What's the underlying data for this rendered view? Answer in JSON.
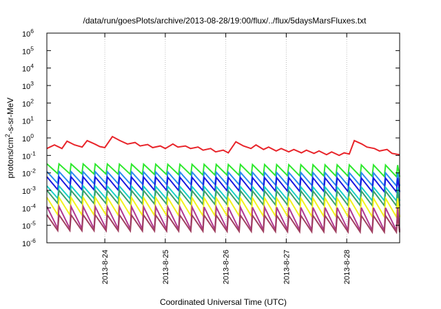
{
  "chart_data": {
    "type": "line",
    "title": "/data/run/goesPlots/archive/2013-08-28/19:00/flux/../flux/5daysMarsFluxes.txt",
    "xlabel": "Coordinated Universal Time (UTC)",
    "ylabel_parts": [
      "protons/cm",
      "2",
      "-s-sr-MeV"
    ],
    "y_scale": "log",
    "ylim": [
      1e-06,
      1000000.0
    ],
    "y_ticks": [
      {
        "base": "10",
        "exp": "-6"
      },
      {
        "base": "10",
        "exp": "-5"
      },
      {
        "base": "10",
        "exp": "-4"
      },
      {
        "base": "10",
        "exp": "-3"
      },
      {
        "base": "10",
        "exp": "-2"
      },
      {
        "base": "10",
        "exp": "-1"
      },
      {
        "base": "10",
        "exp": "0"
      },
      {
        "base": "10",
        "exp": "1"
      },
      {
        "base": "10",
        "exp": "2"
      },
      {
        "base": "10",
        "exp": "3"
      },
      {
        "base": "10",
        "exp": "4"
      },
      {
        "base": "10",
        "exp": "5"
      },
      {
        "base": "10",
        "exp": "6"
      }
    ],
    "xlim": [
      "2013-08-23T01:00",
      "2013-08-28T21:00"
    ],
    "x_ticks": [
      "2013-8-24",
      "2013-8-25",
      "2013-8-26",
      "2013-8-27",
      "2013-8-28"
    ],
    "x_tick_dates": [
      "2013-08-24",
      "2013-08-25",
      "2013-08-26",
      "2013-08-27",
      "2013-08-28"
    ],
    "grid": "vertical",
    "legend": "none",
    "series": [
      {
        "color": "#e8242a",
        "points": [
          [
            "2013-08-23T01:00",
            0.25
          ],
          [
            "2013-08-23T04:00",
            0.4
          ],
          [
            "2013-08-23T07:00",
            0.25
          ],
          [
            "2013-08-23T09:00",
            0.65
          ],
          [
            "2013-08-23T12:00",
            0.4
          ],
          [
            "2013-08-23T15:00",
            0.3
          ],
          [
            "2013-08-23T17:00",
            0.7
          ],
          [
            "2013-08-23T20:00",
            0.45
          ],
          [
            "2013-08-23T22:00",
            0.32
          ],
          [
            "2013-08-24T00:00",
            0.28
          ],
          [
            "2013-08-24T03:00",
            1.2
          ],
          [
            "2013-08-24T06:00",
            0.7
          ],
          [
            "2013-08-24T09:00",
            0.45
          ],
          [
            "2013-08-24T12:00",
            0.55
          ],
          [
            "2013-08-24T14:00",
            0.35
          ],
          [
            "2013-08-24T17:00",
            0.42
          ],
          [
            "2013-08-24T19:00",
            0.28
          ],
          [
            "2013-08-24T22:00",
            0.35
          ],
          [
            "2013-08-25T00:00",
            0.25
          ],
          [
            "2013-08-25T03:00",
            0.45
          ],
          [
            "2013-08-25T05:00",
            0.3
          ],
          [
            "2013-08-25T08:00",
            0.35
          ],
          [
            "2013-08-25T10:00",
            0.25
          ],
          [
            "2013-08-25T13:00",
            0.3
          ],
          [
            "2013-08-25T15:00",
            0.2
          ],
          [
            "2013-08-25T18:00",
            0.25
          ],
          [
            "2013-08-25T20:00",
            0.16
          ],
          [
            "2013-08-25T23:00",
            0.2
          ],
          [
            "2013-08-26T01:00",
            0.14
          ],
          [
            "2013-08-26T04:00",
            0.6
          ],
          [
            "2013-08-26T07:00",
            0.35
          ],
          [
            "2013-08-26T10:00",
            0.25
          ],
          [
            "2013-08-26T12:00",
            0.4
          ],
          [
            "2013-08-26T15:00",
            0.22
          ],
          [
            "2013-08-26T17:00",
            0.3
          ],
          [
            "2013-08-26T20:00",
            0.18
          ],
          [
            "2013-08-26T22:00",
            0.25
          ],
          [
            "2013-08-27T01:00",
            0.16
          ],
          [
            "2013-08-27T03:00",
            0.22
          ],
          [
            "2013-08-27T06:00",
            0.14
          ],
          [
            "2013-08-27T08:00",
            0.2
          ],
          [
            "2013-08-27T11:00",
            0.13
          ],
          [
            "2013-08-27T13:00",
            0.18
          ],
          [
            "2013-08-27T16:00",
            0.11
          ],
          [
            "2013-08-27T18:00",
            0.16
          ],
          [
            "2013-08-27T21:00",
            0.1
          ],
          [
            "2013-08-27T23:00",
            0.14
          ],
          [
            "2013-08-28T01:00",
            0.12
          ],
          [
            "2013-08-28T03:00",
            0.7
          ],
          [
            "2013-08-28T06:00",
            0.45
          ],
          [
            "2013-08-28T08:00",
            0.3
          ],
          [
            "2013-08-28T11:00",
            0.25
          ],
          [
            "2013-08-28T13:00",
            0.18
          ],
          [
            "2013-08-28T16:00",
            0.22
          ],
          [
            "2013-08-28T18:00",
            0.13
          ],
          [
            "2013-08-28T21:00",
            0.11
          ]
        ]
      },
      {
        "color": "#2ee82e",
        "envelope": {
          "peak": 0.033,
          "trough": 0.009,
          "peak_end": 0.028,
          "trough_end": 0.006
        }
      },
      {
        "color": "#2a8cf0",
        "envelope": {
          "peak": 0.012,
          "trough": 0.0025,
          "peak_end": 0.01,
          "trough_end": 0.0018
        }
      },
      {
        "color": "#1a1ae0",
        "envelope": {
          "peak": 0.006,
          "trough": 0.0011,
          "peak_end": 0.005,
          "trough_end": 0.0008
        }
      },
      {
        "color": "#1ad0c8",
        "envelope": {
          "peak": 0.0018,
          "trough": 0.00035,
          "peak_end": 0.0015,
          "trough_end": 0.00025
        }
      },
      {
        "color": "#3aa06a",
        "envelope": {
          "peak": 0.001,
          "trough": 0.00018,
          "peak_end": 0.0009,
          "trough_end": 0.00013
        }
      },
      {
        "color": "#f2f21c",
        "envelope": {
          "peak": 0.0004,
          "trough": 4e-05,
          "peak_end": 0.00035,
          "trough_end": 3e-05
        }
      },
      {
        "color": "#b03890",
        "envelope": {
          "peak": 0.00012,
          "trough": 6.5e-06,
          "peak_end": 0.0001,
          "trough_end": 5e-06
        }
      },
      {
        "color": "#a04060",
        "envelope": {
          "peak": 4e-05,
          "trough": 5e-06,
          "peak_end": 3.5e-05,
          "trough_end": 4e-06
        }
      }
    ]
  }
}
